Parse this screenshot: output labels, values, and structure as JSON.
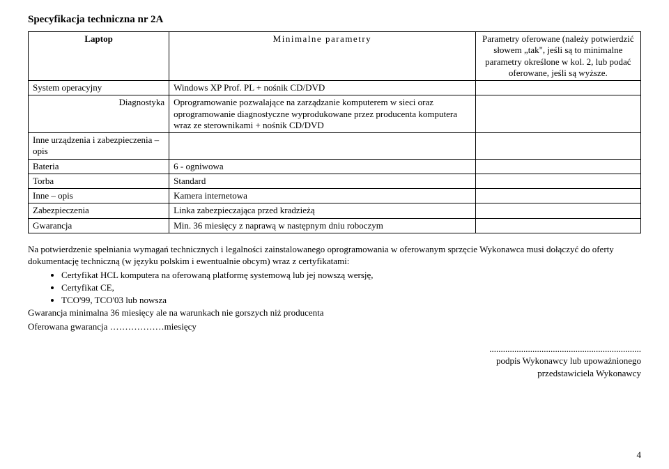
{
  "title": "Specyfikacja techniczna nr 2A",
  "table": {
    "col1_width": "23%",
    "col2_width": "50%",
    "col3_width": "27%",
    "border_color": "#000000",
    "background_color": "#ffffff",
    "font_size": 13,
    "header": {
      "c1": "Laptop",
      "c2": "Minimalne parametry",
      "c3": "Parametry oferowane (należy potwierdzić słowem „tak\", jeśli są to minimalne parametry określone w kol. 2, lub podać oferowane, jeśli są wyższe."
    },
    "rows": [
      {
        "c1": "System operacyjny",
        "c2": "Windows XP Prof. PL + nośnik CD/DVD",
        "c3": ""
      },
      {
        "c1": "Diagnostyka",
        "c2": "Oprogramowanie pozwalające na zarządzanie komputerem w sieci oraz oprogramowanie diagnostyczne wyprodukowane przez producenta komputera wraz ze sterownikami + nośnik CD/DVD",
        "c3": ""
      },
      {
        "c1": "Inne urządzenia i zabezpieczenia – opis",
        "c2": "",
        "c3": ""
      },
      {
        "c1": "Bateria",
        "c2": "6 - ogniwowa",
        "c3": ""
      },
      {
        "c1": "Torba",
        "c2": "Standard",
        "c3": ""
      },
      {
        "c1": "Inne – opis",
        "c2": "Kamera internetowa",
        "c3": ""
      },
      {
        "c1": "Zabezpieczenia",
        "c2": "Linka zabezpieczająca przed kradzieżą",
        "c3": ""
      },
      {
        "c1": "Gwarancja",
        "c2": "Min. 36 miesięcy z naprawą w następnym dniu roboczym",
        "c3": ""
      }
    ]
  },
  "paragraph": {
    "line1": "Na potwierdzenie spełniania wymagań technicznych i legalności zainstalowanego oprogramowania w oferowanym sprzęcie Wykonawca musi dołączyć do oferty dokumentację techniczną (w języku polskim i ewentualnie obcym) wraz z certyfikatami:",
    "bullets": [
      "Certyfikat HCL komputera na oferowaną platformę systemową lub jej nowszą wersję,",
      "Certyfikat CE,",
      "TCO'99, TCO'03 lub nowsza"
    ],
    "line2": "Gwarancja minimalna 36 miesięcy ale na warunkach nie gorszych niż producenta",
    "line3": "Oferowana gwarancja ………………miesięcy"
  },
  "signature": {
    "dots": "...................................................................",
    "line1": "podpis Wykonawcy lub upoważnionego",
    "line2": "przedstawiciela Wykonawcy"
  },
  "page_number": "4"
}
